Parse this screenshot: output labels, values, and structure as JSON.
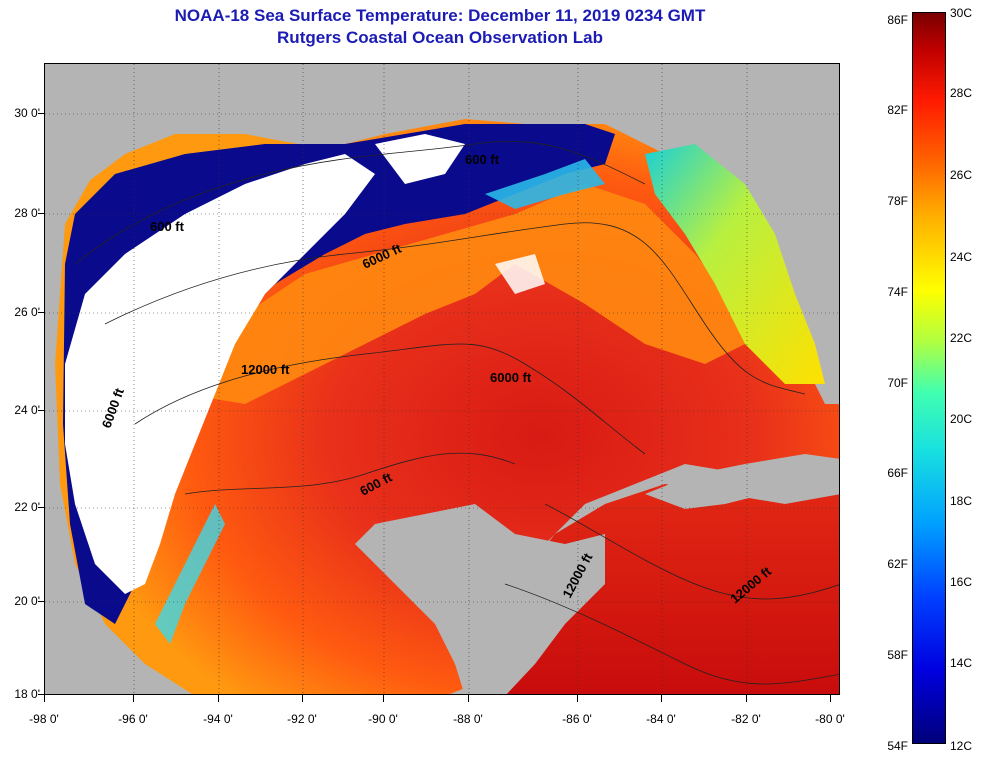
{
  "header": {
    "title": "NOAA-18 Sea Surface Temperature:  December 11, 2019 0234 GMT",
    "subtitle": "Rutgers Coastal Ocean Observation Lab"
  },
  "map": {
    "lat_labels": [
      "30 0'",
      "28 0'",
      "26 0'",
      "24 0'",
      "22 0'",
      "20 0'",
      "18 0'"
    ],
    "lon_labels": [
      "-98 0'",
      "-96 0'",
      "-94 0'",
      "-92 0'",
      "-90 0'",
      "-88 0'",
      "-86 0'",
      "-84 0'",
      "-82 0'",
      "-80 0'"
    ],
    "depth_labels": [
      "600 ft",
      "600 ft",
      "6000 ft",
      "12000 ft",
      "6000 ft",
      "6000 ft",
      "600 ft",
      "12000 ft",
      "12000 ft"
    ],
    "colors": {
      "land": "#b4b4b4",
      "cloud": "#ffffff",
      "warm": "#e8281c",
      "cold": "#0a0a8c"
    }
  },
  "colorbar": {
    "fahrenheit": [
      "86F",
      "82F",
      "78F",
      "74F",
      "70F",
      "66F",
      "62F",
      "58F",
      "54F"
    ],
    "celsius": [
      "30C",
      "28C",
      "26C",
      "24C",
      "22C",
      "20C",
      "18C",
      "16C",
      "14C",
      "12C"
    ]
  }
}
